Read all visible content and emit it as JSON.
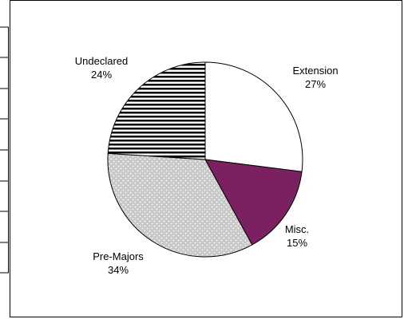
{
  "chart_data": {
    "type": "pie",
    "title": "",
    "slices": [
      {
        "label": "Extension",
        "percent_label": "27%",
        "value": 27,
        "color": "#ffffff",
        "pattern": "none"
      },
      {
        "label": "Misc.",
        "percent_label": "15%",
        "value": 15,
        "color": "#7b2061",
        "pattern": "none"
      },
      {
        "label": "Pre-Majors",
        "percent_label": "34%",
        "value": 34,
        "color": "#c8c8c8",
        "pattern": "dots"
      },
      {
        "label": "Undeclared",
        "percent_label": "24%",
        "value": 24,
        "color": "#ffffff",
        "pattern": "horizontal-stripes"
      }
    ],
    "start_angle_note": "first slice begins at 12 o'clock, clockwise",
    "legend": "none"
  },
  "colors": {
    "border": "#000000",
    "misc": "#7b2061",
    "dots_bg": "#c8c8c8",
    "dots": "#ffffff",
    "stripes": "#000000"
  }
}
